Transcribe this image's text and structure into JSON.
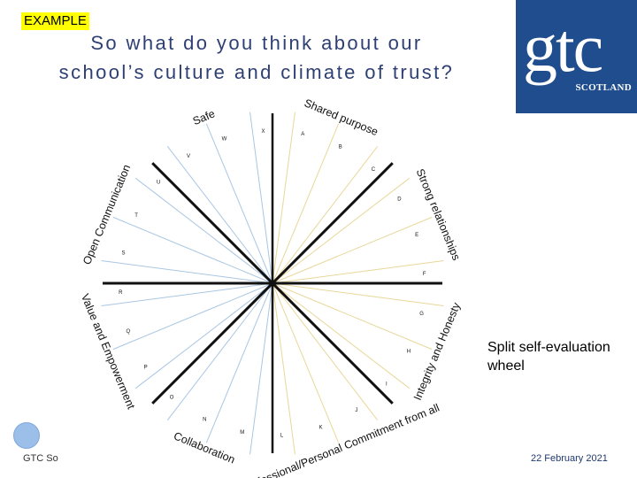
{
  "badge": "EXAMPLE",
  "title_line1": "So what do you think about our",
  "title_line2": "school’s culture and climate of trust?",
  "logo": {
    "main": "gtc",
    "sub": "SCOTLAND"
  },
  "caption": "Split self-evaluation wheel",
  "footer_left": "GTC So",
  "footer_right": "22 February 2021",
  "categories": [
    "Shared purpose",
    "Strong relationships",
    "Integrity and Honesty",
    "Professional/Personal Commitment from all",
    "Collaboration",
    "Value and Empowerment",
    "Open Communication",
    "Safe"
  ],
  "spokes": [
    "A",
    "B",
    "C",
    "D",
    "E",
    "F",
    "G",
    "H",
    "I",
    "J",
    "K",
    "L",
    "M",
    "N",
    "O",
    "P",
    "Q",
    "R",
    "S",
    "T",
    "U",
    "V",
    "W",
    "X"
  ],
  "colors": {
    "title": "#2e3f73",
    "logo_bg": "#1f4d8d",
    "spoke_right": "#e8d79a",
    "spoke_left": "#a9c6e3",
    "divider": "#111111"
  }
}
